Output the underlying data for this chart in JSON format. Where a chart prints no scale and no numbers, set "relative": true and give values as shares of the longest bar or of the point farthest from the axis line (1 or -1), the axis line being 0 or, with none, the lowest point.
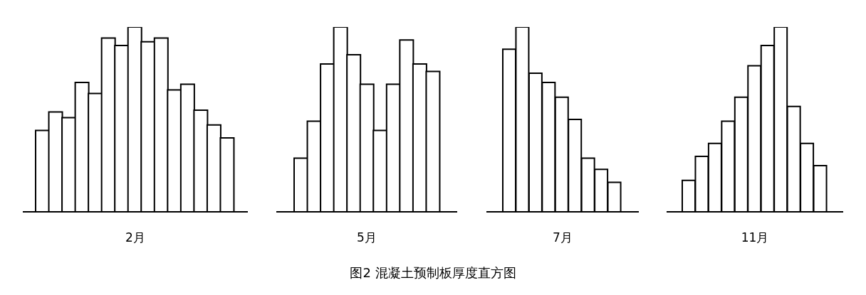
{
  "chart_data": [
    {
      "type": "bar",
      "relative": true,
      "xlabel": "2月",
      "color": "#ffffff",
      "categories": [
        null,
        null,
        null,
        null,
        null,
        null,
        null,
        null,
        null,
        null,
        null,
        null,
        null,
        null,
        null
      ],
      "values": [
        0.44,
        0.54,
        0.51,
        0.7,
        0.64,
        0.94,
        0.9,
        1,
        0.92,
        0.94,
        0.66,
        0.69,
        0.55,
        0.47,
        0.4
      ],
      "annotations": [
        "图2 混凝土预制板厚度直方图"
      ]
    },
    {
      "type": "bar",
      "relative": true,
      "xlabel": "5月",
      "color": "#ffffff",
      "categories": [
        null,
        null,
        null,
        null,
        null,
        null,
        null,
        null,
        null,
        null,
        null
      ],
      "values": [
        0.29,
        0.49,
        0.8,
        1,
        0.85,
        0.69,
        0.44,
        0.69,
        0.93,
        0.8,
        0.76
      ]
    },
    {
      "type": "bar",
      "relative": true,
      "xlabel": "7月",
      "color": "#ffffff",
      "categories": [
        null,
        null,
        null,
        null,
        null,
        null,
        null,
        null,
        null
      ],
      "values": [
        0.88,
        1,
        0.75,
        0.7,
        0.62,
        0.5,
        0.29,
        0.23,
        0.16
      ]
    },
    {
      "type": "bar",
      "relative": true,
      "xlabel": "11月",
      "color": "#ffffff",
      "categories": [
        null,
        null,
        null,
        null,
        null,
        null,
        null,
        null,
        null,
        null,
        null
      ],
      "values": [
        0.17,
        0.3,
        0.37,
        0.49,
        0.62,
        0.79,
        0.9,
        1,
        0.57,
        0.37,
        0.25
      ]
    }
  ]
}
